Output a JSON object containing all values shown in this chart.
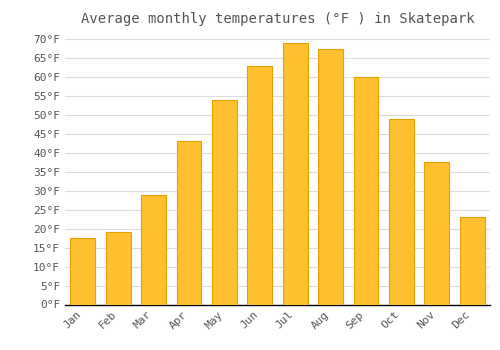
{
  "title": "Average monthly temperatures (°F ) in Skatepark",
  "months": [
    "Jan",
    "Feb",
    "Mar",
    "Apr",
    "May",
    "Jun",
    "Jul",
    "Aug",
    "Sep",
    "Oct",
    "Nov",
    "Dec"
  ],
  "values": [
    17.5,
    19,
    29,
    43,
    54,
    63,
    69,
    67.5,
    60,
    49,
    37.5,
    23
  ],
  "bar_color": "#FFC030",
  "bar_edge_color": "#E8A000",
  "background_color": "#FFFFFF",
  "grid_color": "#DDDDDD",
  "text_color": "#555555",
  "ylim": [
    0,
    72
  ],
  "yticks": [
    0,
    5,
    10,
    15,
    20,
    25,
    30,
    35,
    40,
    45,
    50,
    55,
    60,
    65,
    70
  ],
  "title_fontsize": 10,
  "tick_fontsize": 8,
  "font_family": "monospace",
  "bar_width": 0.7
}
